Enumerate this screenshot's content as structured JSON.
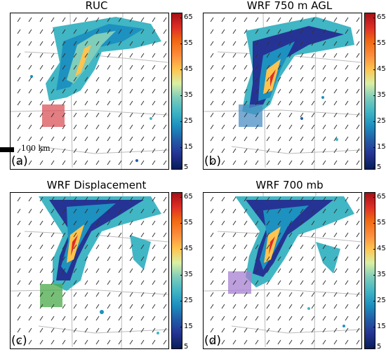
{
  "panels": [
    {
      "title": "RUC",
      "label": "(a)",
      "box_color": "#d9535a"
    },
    {
      "title": "WRF 750 m AGL",
      "label": "(b)",
      "box_color": "#4a8fc4"
    },
    {
      "title": "WRF Displacement",
      "label": "(c)",
      "box_color": "#4aa94a"
    },
    {
      "title": "WRF 700 mb",
      "label": "(d)",
      "box_color": "#a57fd0"
    }
  ],
  "colorbar": {
    "ticks": [
      "65",
      "55",
      "45",
      "35",
      "25",
      "15",
      "5"
    ],
    "colors": [
      "#a50f15",
      "#de2d26",
      "#f16913",
      "#fd8d3c",
      "#fec44f",
      "#d9f0a3",
      "#7fcdbb",
      "#41b6c4",
      "#1d91c0",
      "#225ea8",
      "#253494",
      "#081d58"
    ]
  },
  "scale": {
    "label": "100 km"
  }
}
